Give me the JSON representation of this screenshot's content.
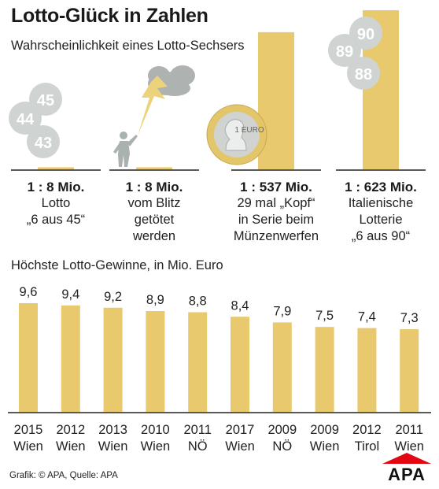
{
  "title": "Lotto-Glück in Zahlen",
  "subtitle": "Wahrscheinlichkeit eines Lotto-Sechsers",
  "icons": {
    "balls_left": [
      "45",
      "44",
      "43"
    ],
    "balls_right": [
      "90",
      "89",
      "88"
    ],
    "coin_label": "1 EURO",
    "storm": "lightning-cloud-icon",
    "person": "person-icon"
  },
  "colors": {
    "bar": "#e8c96e",
    "ball": "#cfd4d3",
    "ball_text": "#ffffff",
    "coin_outer": "#e3c56a",
    "coin_inner": "#d1d3d0",
    "cloud": "#aeb3b2",
    "bolt": "#ecd27a",
    "person": "#a9b2b0",
    "logo": "#e30613"
  },
  "chart_data": [
    {
      "type": "bar",
      "title": "Wahrscheinlichkeit eines Lotto-Sechsers",
      "categories": [
        "1 : 8 Mio.",
        "1 : 8 Mio.",
        "1 : 537 Mio.",
        "1 : 623 Mio."
      ],
      "labels": [
        [
          "Lotto",
          "„6 aus 45“"
        ],
        [
          "vom Blitz",
          "getötet",
          "werden"
        ],
        [
          "29 mal „Kopf“",
          "in Serie beim",
          "Münzenwerfen"
        ],
        [
          "Italienische",
          "Lotterie",
          "„6 aus 90“"
        ]
      ],
      "values": [
        8,
        8,
        537,
        623
      ],
      "unit": "Mio."
    },
    {
      "type": "bar",
      "title": "Höchste Lotto-Gewinne, in Mio. Euro",
      "values": [
        9.6,
        9.4,
        9.2,
        8.9,
        8.8,
        8.4,
        7.9,
        7.5,
        7.4,
        7.3
      ],
      "value_labels": [
        "9,6",
        "9,4",
        "9,2",
        "8,9",
        "8,8",
        "8,4",
        "7,9",
        "7,5",
        "7,4",
        "7,3"
      ],
      "years": [
        "2015",
        "2012",
        "2013",
        "2010",
        "2011",
        "2017",
        "2009",
        "2009",
        "2012",
        "2011"
      ],
      "places": [
        "Wien",
        "Wien",
        "Wien",
        "Wien",
        "NÖ",
        "Wien",
        "NÖ",
        "Wien",
        "Tirol",
        "Wien"
      ]
    }
  ],
  "section2_title": "Höchste Lotto-Gewinne, in Mio. Euro",
  "source": "Grafik: © APA, Quelle: APA",
  "logo_text": "APA"
}
